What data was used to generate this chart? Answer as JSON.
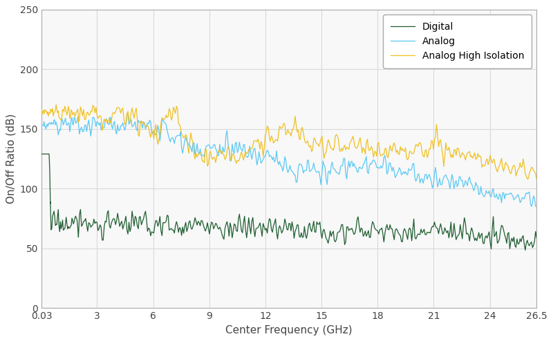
{
  "title": "",
  "xlabel": "Center Frequency (GHz)",
  "ylabel": "On/Off Ratio (dB)",
  "xlim": [
    0.03,
    26.5
  ],
  "ylim": [
    0,
    250
  ],
  "yticks": [
    0,
    50,
    100,
    150,
    200,
    250
  ],
  "xticks": [
    0.03,
    3,
    6,
    9,
    12,
    15,
    18,
    21,
    24,
    26.5
  ],
  "xticklabels": [
    "0.03",
    "3",
    "6",
    "9",
    "12",
    "15",
    "18",
    "21",
    "24",
    "26.5"
  ],
  "colors": {
    "digital": "#1e5c30",
    "analog": "#5bc8f5",
    "analog_hi": "#f0c020"
  },
  "legend": [
    "Digital",
    "Analog",
    "Analog High Isolation"
  ],
  "background": "#f8f8f8",
  "grid_color": "#d8d8d8",
  "linewidth": 0.9,
  "figsize": [
    8.0,
    4.94
  ],
  "dpi": 100
}
